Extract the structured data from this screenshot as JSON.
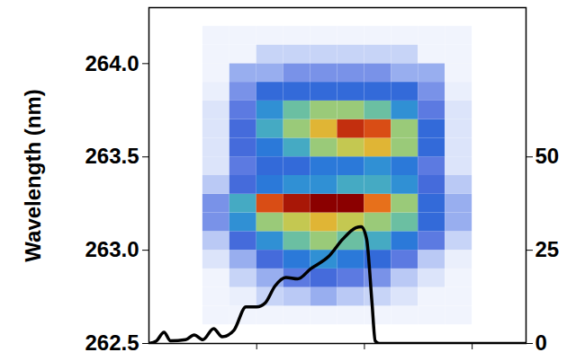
{
  "chart_data": {
    "type": "heatmap",
    "y_label": "Wavelength (nm)",
    "xlim": [
      -1.0,
      2.5
    ],
    "xticks": [
      0,
      1,
      2
    ],
    "ylim": [
      262.5,
      264.3
    ],
    "yticks": [
      262.5,
      {
        "value": 263,
        "label": "263.0"
      },
      263.5,
      {
        "value": 264,
        "label": "264.0"
      }
    ],
    "y2lim": [
      0,
      90
    ],
    "y2ticks": [
      0,
      25,
      50
    ],
    "tick_labels": "y",
    "zlim": [
      0,
      1
    ],
    "cell_x": [
      -0.5,
      -0.25,
      0,
      0.25,
      0.5,
      0.75,
      1.0,
      1.25,
      1.5,
      1.75,
      2.0
    ],
    "cell_y": [
      262.6,
      262.7,
      262.8,
      262.9,
      263.0,
      263.1,
      263.2,
      263.3,
      263.4,
      263.5,
      263.6,
      263.7,
      263.8,
      263.9,
      264.0,
      264.1,
      264.2
    ],
    "cells": [
      [
        0.02,
        0.02,
        0.02,
        0.02,
        0.02,
        0.02,
        0.02,
        0.02,
        0.02,
        0.02
      ],
      [
        0.02,
        0.03,
        0.08,
        0.1,
        0.15,
        0.1,
        0.08,
        0.05,
        0.02,
        0.02
      ],
      [
        0.02,
        0.08,
        0.15,
        0.25,
        0.3,
        0.25,
        0.2,
        0.1,
        0.05,
        0.02
      ],
      [
        0.05,
        0.15,
        0.3,
        0.4,
        0.45,
        0.4,
        0.35,
        0.25,
        0.1,
        0.03
      ],
      [
        0.1,
        0.3,
        0.45,
        0.55,
        0.6,
        0.55,
        0.5,
        0.4,
        0.25,
        0.08
      ],
      [
        0.2,
        0.45,
        0.6,
        0.65,
        0.7,
        0.65,
        0.6,
        0.55,
        0.35,
        0.15
      ],
      [
        0.2,
        0.5,
        0.85,
        0.95,
        1.0,
        1.0,
        0.8,
        0.6,
        0.35,
        0.15
      ],
      [
        0.1,
        0.3,
        0.4,
        0.45,
        0.45,
        0.5,
        0.5,
        0.45,
        0.3,
        0.1
      ],
      [
        0.05,
        0.25,
        0.35,
        0.35,
        0.4,
        0.4,
        0.45,
        0.4,
        0.25,
        0.05
      ],
      [
        0.05,
        0.3,
        0.4,
        0.5,
        0.6,
        0.65,
        0.7,
        0.6,
        0.35,
        0.05
      ],
      [
        0.05,
        0.3,
        0.5,
        0.6,
        0.7,
        0.9,
        0.85,
        0.6,
        0.35,
        0.05
      ],
      [
        0.05,
        0.25,
        0.45,
        0.55,
        0.6,
        0.6,
        0.55,
        0.45,
        0.25,
        0.05
      ],
      [
        0.03,
        0.2,
        0.35,
        0.35,
        0.35,
        0.35,
        0.35,
        0.35,
        0.2,
        0.03
      ],
      [
        0.02,
        0.15,
        0.15,
        0.2,
        0.2,
        0.2,
        0.2,
        0.15,
        0.15,
        0.02
      ],
      [
        0.02,
        0.02,
        0.08,
        0.08,
        0.08,
        0.08,
        0.08,
        0.08,
        0.02,
        0.02
      ],
      [
        0.02,
        0.02,
        0.02,
        0.02,
        0.02,
        0.02,
        0.02,
        0.02,
        0.02,
        0.02
      ]
    ],
    "series": [
      {
        "type": "line",
        "color": "#000000",
        "axis": "y2",
        "x": [
          -1.0,
          -0.93,
          -0.86,
          -0.8,
          -0.66,
          -0.58,
          -0.5,
          -0.4,
          -0.32,
          -0.21,
          -0.1,
          0,
          0.08,
          0.17,
          0.27,
          0.38,
          0.5,
          0.67,
          0.8,
          0.92,
          0.97,
          1.02,
          1.07,
          1.1,
          1.14,
          2.5
        ],
        "values": [
          0,
          0.7,
          3,
          0.7,
          1,
          2.3,
          1,
          4,
          1.8,
          3.6,
          9.8,
          9.8,
          10.9,
          15.4,
          17.7,
          17.3,
          20,
          23.4,
          28,
          31,
          31.3,
          28,
          11,
          0.7,
          0,
          0
        ]
      }
    ]
  }
}
